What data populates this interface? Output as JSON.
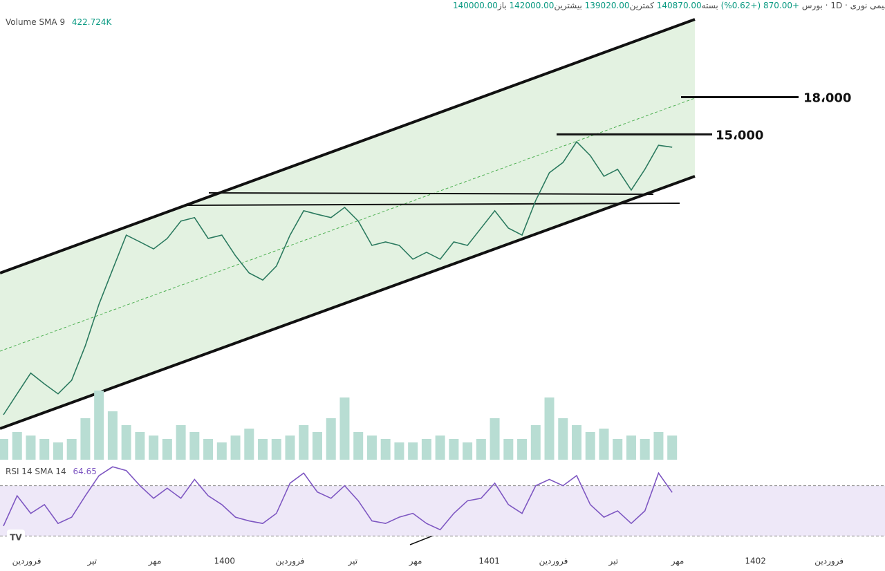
{
  "header": {
    "symbol": "پتروشیمی نوری",
    "interval": "1D",
    "exchange": "بورس",
    "open_label": "باز",
    "open": "140000.00",
    "high_label": "بیشترین",
    "high": "142000.00",
    "low_label": "کمترین",
    "low": "139020.00",
    "close_label": "بسته",
    "close": "140870.00",
    "change": "+870.00 (+0.62%)",
    "volume_label": "Volume SMA 9",
    "volume_sma": "422.724K",
    "rsi_label": "RSI 14 SMA 14"
  },
  "chart_data": [
    {
      "type": "line",
      "name": "price",
      "color": "#2b7a5f",
      "log_scale": true,
      "ylim": [
        3800,
        28000
      ],
      "xlim": [
        0,
        65
      ],
      "values": [
        3800,
        4210,
        4660,
        4420,
        4210,
        4500,
        5330,
        6530,
        7740,
        9160,
        8860,
        8560,
        9010,
        9810,
        9980,
        9010,
        9160,
        8280,
        7610,
        7350,
        7870,
        9160,
        10320,
        10140,
        9980,
        10490,
        9810,
        8710,
        8860,
        8710,
        8140,
        8420,
        8140,
        8860,
        8710,
        9480,
        10320,
        9480,
        9160,
        10850,
        12430,
        13070,
        14470,
        13520,
        12220,
        12640,
        11420,
        12640,
        14220,
        14087
      ],
      "xticks": [
        {
          "value": 1.7,
          "label": "فروردین"
        },
        {
          "value": 6.5,
          "label": "تیر"
        },
        {
          "value": 11.1,
          "label": "مهر"
        },
        {
          "value": 16.2,
          "label": "1400"
        },
        {
          "value": 21.0,
          "label": "فروردین"
        },
        {
          "value": 25.6,
          "label": "تیر"
        },
        {
          "value": 30.2,
          "label": "مهر"
        },
        {
          "value": 35.6,
          "label": "1401"
        },
        {
          "value": 40.3,
          "label": "فروردین"
        },
        {
          "value": 44.7,
          "label": "تیر"
        },
        {
          "value": 49.4,
          "label": "مهر"
        },
        {
          "value": 55.1,
          "label": "1402"
        },
        {
          "value": 60.5,
          "label": "فروردین"
        }
      ],
      "annotations": [
        {
          "value": 18000,
          "label": "18،000"
        },
        {
          "value": 15000,
          "label": "15،000"
        }
      ]
    },
    {
      "type": "bar",
      "name": "volume",
      "color": "#b8ddd3",
      "ylim": [
        0,
        3000
      ],
      "xlim": [
        0,
        65
      ],
      "values": [
        300,
        400,
        350,
        300,
        250,
        300,
        600,
        1000,
        700,
        500,
        400,
        350,
        300,
        500,
        400,
        300,
        250,
        350,
        450,
        300,
        300,
        350,
        500,
        400,
        600,
        900,
        400,
        350,
        300,
        250,
        250,
        300,
        350,
        300,
        250,
        300,
        600,
        300,
        300,
        500,
        900,
        600,
        500,
        400,
        450,
        300,
        350,
        300,
        400,
        350
      ]
    },
    {
      "type": "line",
      "name": "rsi",
      "color": "#7e57c2",
      "ylim": [
        22,
        89
      ],
      "xlim": [
        0,
        65
      ],
      "band": [
        30,
        70
      ],
      "last": 64.65,
      "values": [
        38,
        62,
        48,
        55,
        40,
        45,
        62,
        78,
        85,
        82,
        70,
        60,
        68,
        60,
        75,
        62,
        55,
        45,
        42,
        40,
        48,
        72,
        80,
        65,
        60,
        70,
        58,
        42,
        40,
        45,
        48,
        40,
        35,
        48,
        58,
        60,
        72,
        55,
        48,
        70,
        75,
        70,
        78,
        55,
        45,
        50,
        40,
        50,
        80,
        64.65
      ]
    }
  ]
}
